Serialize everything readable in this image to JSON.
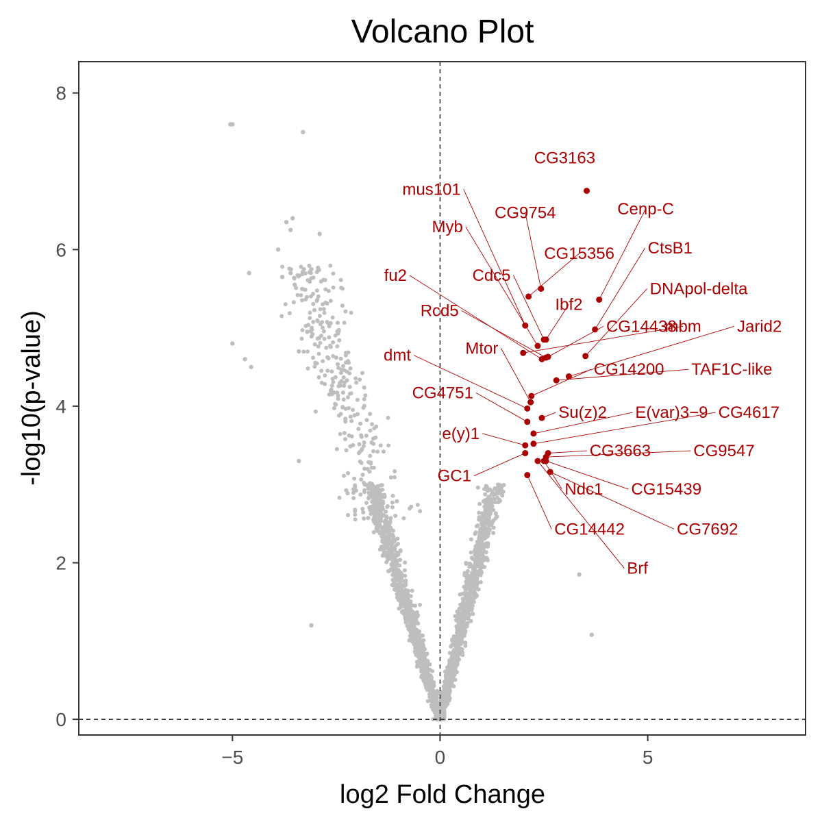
{
  "chart_data": {
    "type": "scatter",
    "title": "Volcano Plot",
    "xlabel": "log2 Fold Change",
    "ylabel": "-log10(p-value)",
    "xlim": [
      -8.7,
      8.8
    ],
    "ylim": [
      -0.2,
      8.4
    ],
    "xticks": [
      -5,
      0,
      5
    ],
    "yticks": [
      0,
      2,
      4,
      6,
      8
    ],
    "xtick_labels": [
      "−5",
      "0",
      "5"
    ],
    "ytick_labels": [
      "0",
      "2",
      "4",
      "6",
      "8"
    ],
    "reference_lines": {
      "x": 0,
      "y": 0,
      "style": "dashed"
    },
    "grid": false,
    "legend": "none",
    "colors": {
      "significant": "#aa0000",
      "background_points": "#bebebe",
      "reference_line": "#333333",
      "panel_border": "#333333"
    },
    "background_points_note": "several thousand non-significant genes shown in grey forming a V shape",
    "background_outliers": [
      {
        "x": -5.05,
        "y": 7.6
      },
      {
        "x": -5.0,
        "y": 7.6
      },
      {
        "x": -3.3,
        "y": 7.5
      },
      {
        "x": -3.7,
        "y": 6.35
      },
      {
        "x": -3.55,
        "y": 6.4
      },
      {
        "x": -3.6,
        "y": 6.25
      },
      {
        "x": -2.9,
        "y": 6.2
      },
      {
        "x": -3.9,
        "y": 6.0
      },
      {
        "x": -4.6,
        "y": 5.7
      },
      {
        "x": -3.8,
        "y": 5.65
      },
      {
        "x": -3.6,
        "y": 5.7
      },
      {
        "x": -3.1,
        "y": 5.75
      },
      {
        "x": -3.5,
        "y": 5.55
      },
      {
        "x": -5.0,
        "y": 4.8
      },
      {
        "x": -4.7,
        "y": 4.6
      },
      {
        "x": -4.55,
        "y": 4.5
      },
      {
        "x": -3.4,
        "y": 3.3
      },
      {
        "x": -3.1,
        "y": 1.2
      },
      {
        "x": 3.35,
        "y": 1.85
      },
      {
        "x": 3.65,
        "y": 1.08
      },
      {
        "x": -3.2,
        "y": 4.95
      },
      {
        "x": -3.4,
        "y": 4.7
      }
    ],
    "series": [
      {
        "name": "labeled",
        "points": [
          {
            "gene": "CG3163",
            "x": 3.53,
            "y": 6.75
          },
          {
            "gene": "Cenp-C",
            "x": 3.83,
            "y": 5.36
          },
          {
            "gene": "CG9754",
            "x": 2.43,
            "y": 5.5
          },
          {
            "gene": "CG15356",
            "x": 2.13,
            "y": 5.4
          },
          {
            "gene": "mus101",
            "x": 2.05,
            "y": 5.03
          },
          {
            "gene": "Myb",
            "x": 2.35,
            "y": 4.77
          },
          {
            "gene": "Cdc5",
            "x": 2.5,
            "y": 4.85
          },
          {
            "gene": "CtsB1",
            "x": 3.73,
            "y": 4.98
          },
          {
            "gene": "fu2",
            "x": 2.45,
            "y": 4.6
          },
          {
            "gene": "Ibf2",
            "x": 2.55,
            "y": 4.85
          },
          {
            "gene": "Rcd5",
            "x": 2.55,
            "y": 4.62
          },
          {
            "gene": "DNApol-delta",
            "x": 3.5,
            "y": 4.64
          },
          {
            "gene": "mbm",
            "x": 2.0,
            "y": 4.68
          },
          {
            "gene": "CG14438",
            "x": 2.6,
            "y": 4.63
          },
          {
            "gene": "Jarid2",
            "x": 3.1,
            "y": 4.38
          },
          {
            "gene": "TAF1C-like",
            "x": 2.8,
            "y": 4.33
          },
          {
            "gene": "CG14200",
            "x": 2.2,
            "y": 4.13
          },
          {
            "gene": "Mtor",
            "x": 2.18,
            "y": 4.05
          },
          {
            "gene": "dmt",
            "x": 2.1,
            "y": 3.97
          },
          {
            "gene": "Su(z)2",
            "x": 2.45,
            "y": 3.85
          },
          {
            "gene": "CG4751",
            "x": 2.1,
            "y": 3.8
          },
          {
            "gene": "E(var)3-9",
            "x": 2.25,
            "y": 3.65
          },
          {
            "gene": "CG4617",
            "x": 2.25,
            "y": 3.52
          },
          {
            "gene": "e(y)1",
            "x": 2.05,
            "y": 3.5
          },
          {
            "gene": "CG3663",
            "x": 2.6,
            "y": 3.4
          },
          {
            "gene": "GC1",
            "x": 2.05,
            "y": 3.4
          },
          {
            "gene": "CG9547",
            "x": 2.55,
            "y": 3.35
          },
          {
            "gene": "CG15439",
            "x": 2.55,
            "y": 3.3
          },
          {
            "gene": "Ndc1",
            "x": 2.5,
            "y": 3.3
          },
          {
            "gene": "CG7692",
            "x": 2.65,
            "y": 3.16
          },
          {
            "gene": "CG14442",
            "x": 2.1,
            "y": 3.12
          },
          {
            "gene": "Brf",
            "x": 2.35,
            "y": 3.3
          }
        ]
      }
    ],
    "labels": [
      {
        "text": "CG3163",
        "point": "CG3163",
        "lx": 3.0,
        "ly": 7.1,
        "anchor": "middle",
        "line": false
      },
      {
        "text": "mus101",
        "point": "mus101",
        "lx": 0.5,
        "ly": 6.7,
        "anchor": "end",
        "line": true
      },
      {
        "text": "CG9754",
        "point": "CG9754",
        "lx": 2.05,
        "ly": 6.4,
        "anchor": "middle",
        "line": true
      },
      {
        "text": "Cenp-C",
        "point": "Cenp-C",
        "lx": 4.95,
        "ly": 6.45,
        "anchor": "middle",
        "line": true
      },
      {
        "text": "Myb",
        "point": "Myb",
        "lx": 0.55,
        "ly": 6.22,
        "anchor": "end",
        "line": true
      },
      {
        "text": "CG15356",
        "point": "CG15356",
        "lx": 3.35,
        "ly": 5.88,
        "anchor": "middle",
        "line": true
      },
      {
        "text": "CtsB1",
        "point": "CtsB1",
        "lx": 5.0,
        "ly": 5.95,
        "anchor": "start",
        "line": true
      },
      {
        "text": "Cdc5",
        "point": "Cdc5",
        "lx": 1.7,
        "ly": 5.6,
        "anchor": "end",
        "line": true
      },
      {
        "text": "fu2",
        "point": "fu2",
        "lx": -0.8,
        "ly": 5.6,
        "anchor": "end",
        "line": true
      },
      {
        "text": "DNApol-delta",
        "point": "DNApol-delta",
        "lx": 5.05,
        "ly": 5.43,
        "anchor": "start",
        "line": true
      },
      {
        "text": "Rcd5",
        "point": "Rcd5",
        "lx": 0.45,
        "ly": 5.15,
        "anchor": "end",
        "line": true
      },
      {
        "text": "Ibf2",
        "point": "Ibf2",
        "lx": 3.1,
        "ly": 5.23,
        "anchor": "middle",
        "line": true
      },
      {
        "text": "CG14438",
        "point": "CG14438",
        "lx": 4.0,
        "ly": 4.95,
        "anchor": "start",
        "line": true
      },
      {
        "text": "mbm",
        "point": "mbm",
        "lx": 5.85,
        "ly": 4.95,
        "anchor": "middle",
        "line": true
      },
      {
        "text": "Jarid2",
        "point": "Jarid2",
        "lx": 7.15,
        "ly": 4.95,
        "anchor": "start",
        "line": true
      },
      {
        "text": "Mtor",
        "point": "Mtor",
        "lx": 1.4,
        "ly": 4.67,
        "anchor": "end",
        "line": true
      },
      {
        "text": "dmt",
        "point": "dmt",
        "lx": -0.7,
        "ly": 4.58,
        "anchor": "end",
        "line": true
      },
      {
        "text": "CG14200",
        "point": "CG14200",
        "lx": 3.7,
        "ly": 4.4,
        "anchor": "start",
        "line": true
      },
      {
        "text": "TAF1C-like",
        "point": "TAF1C-like",
        "lx": 6.05,
        "ly": 4.4,
        "anchor": "start",
        "line": true
      },
      {
        "text": "CG4751",
        "point": "CG4751",
        "lx": 0.8,
        "ly": 4.1,
        "anchor": "end",
        "line": true
      },
      {
        "text": "Su(z)2",
        "point": "Su(z)2",
        "lx": 2.85,
        "ly": 3.85,
        "anchor": "start",
        "line": true
      },
      {
        "text": "E(var)3−9",
        "point": "E(var)3-9",
        "lx": 4.7,
        "ly": 3.85,
        "anchor": "start",
        "line": true
      },
      {
        "text": "CG4617",
        "point": "CG4617",
        "lx": 6.7,
        "ly": 3.85,
        "anchor": "start",
        "line": true
      },
      {
        "text": "e(y)1",
        "point": "e(y)1",
        "lx": 0.95,
        "ly": 3.58,
        "anchor": "end",
        "line": true
      },
      {
        "text": "CG3663",
        "point": "CG3663",
        "lx": 3.6,
        "ly": 3.36,
        "anchor": "start",
        "line": true
      },
      {
        "text": "CG9547",
        "point": "CG9547",
        "lx": 6.1,
        "ly": 3.36,
        "anchor": "start",
        "line": true
      },
      {
        "text": "GC1",
        "point": "GC1",
        "lx": 0.75,
        "ly": 3.04,
        "anchor": "end",
        "line": true
      },
      {
        "text": "Ndc1",
        "point": "Ndc1",
        "lx": 3.0,
        "ly": 2.87,
        "anchor": "start",
        "line": true
      },
      {
        "text": "CG15439",
        "point": "CG15439",
        "lx": 4.6,
        "ly": 2.87,
        "anchor": "start",
        "line": true
      },
      {
        "text": "CG14442",
        "point": "CG14442",
        "lx": 2.75,
        "ly": 2.36,
        "anchor": "start",
        "line": true
      },
      {
        "text": "CG7692",
        "point": "CG7692",
        "lx": 5.7,
        "ly": 2.36,
        "anchor": "start",
        "line": true
      },
      {
        "text": "Brf",
        "point": "Brf",
        "lx": 4.5,
        "ly": 1.86,
        "anchor": "start",
        "line": true
      }
    ]
  }
}
